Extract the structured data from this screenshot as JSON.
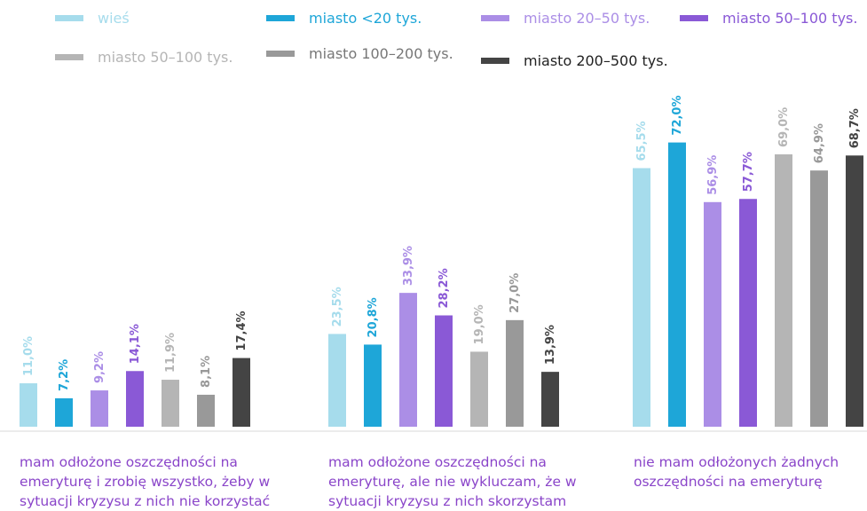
{
  "chart_data": {
    "type": "bar",
    "title": "",
    "xlabel": "",
    "ylabel": "",
    "ylim": [
      0,
      80
    ],
    "grid": false,
    "legend_position": "top",
    "categories": [
      "mam odłożone oszczędności na emeryturę i zrobię wszystko, żeby w sytuacji kryzysu z nich nie korzystać",
      "mam odłożone oszczędności na emeryturę, ale nie wykluczam, że w sytuacji kryzysu z nich skorzystam",
      "nie mam odłożonych żadnych oszczędności na emeryturę"
    ],
    "series": [
      {
        "name": "wieś",
        "color": "#a6dcec",
        "values": [
          11.0,
          23.5,
          65.5
        ],
        "labels": [
          "11,0%",
          "23,5%",
          "65,5%"
        ]
      },
      {
        "name": "miasto <20 tys.",
        "color": "#1ea6d8",
        "values": [
          7.2,
          20.8,
          72.0
        ],
        "labels": [
          "7,2%",
          "20,8%",
          "72,0%"
        ]
      },
      {
        "name": "miasto 20–50 tys.",
        "color": "#ab8ee6",
        "values": [
          9.2,
          33.9,
          56.9
        ],
        "labels": [
          "9,2%",
          "33,9%",
          "56,9%"
        ]
      },
      {
        "name": "miasto 50–100 tys.",
        "color": "#8a59d6",
        "values": [
          14.1,
          28.2,
          57.7
        ],
        "labels": [
          "14,1%",
          "28,2%",
          "57,7%"
        ]
      },
      {
        "name": "miasto 50–100 tys.",
        "color": "#b5b5b5",
        "values": [
          11.9,
          19.0,
          69.0
        ],
        "labels": [
          "11,9%",
          "19,0%",
          "69,0%"
        ]
      },
      {
        "name": "miasto 100–200 tys.",
        "color": "#999999",
        "values": [
          8.1,
          27.0,
          64.9
        ],
        "labels": [
          "8,1%",
          "27,0%",
          "64,9%"
        ]
      },
      {
        "name": "miasto 200–500 tys.",
        "color": "#444444",
        "values": [
          17.4,
          13.9,
          68.7
        ],
        "labels": [
          "17,4%",
          "13,9%",
          "68,7%"
        ]
      }
    ],
    "legend_text_colors": [
      "#a6dcec",
      "#1ea6d8",
      "#ab8ee6",
      "#8a59d6",
      "#b5b5b5",
      "#777777",
      "#222222"
    ],
    "category_label_color": "#8a45c9"
  }
}
